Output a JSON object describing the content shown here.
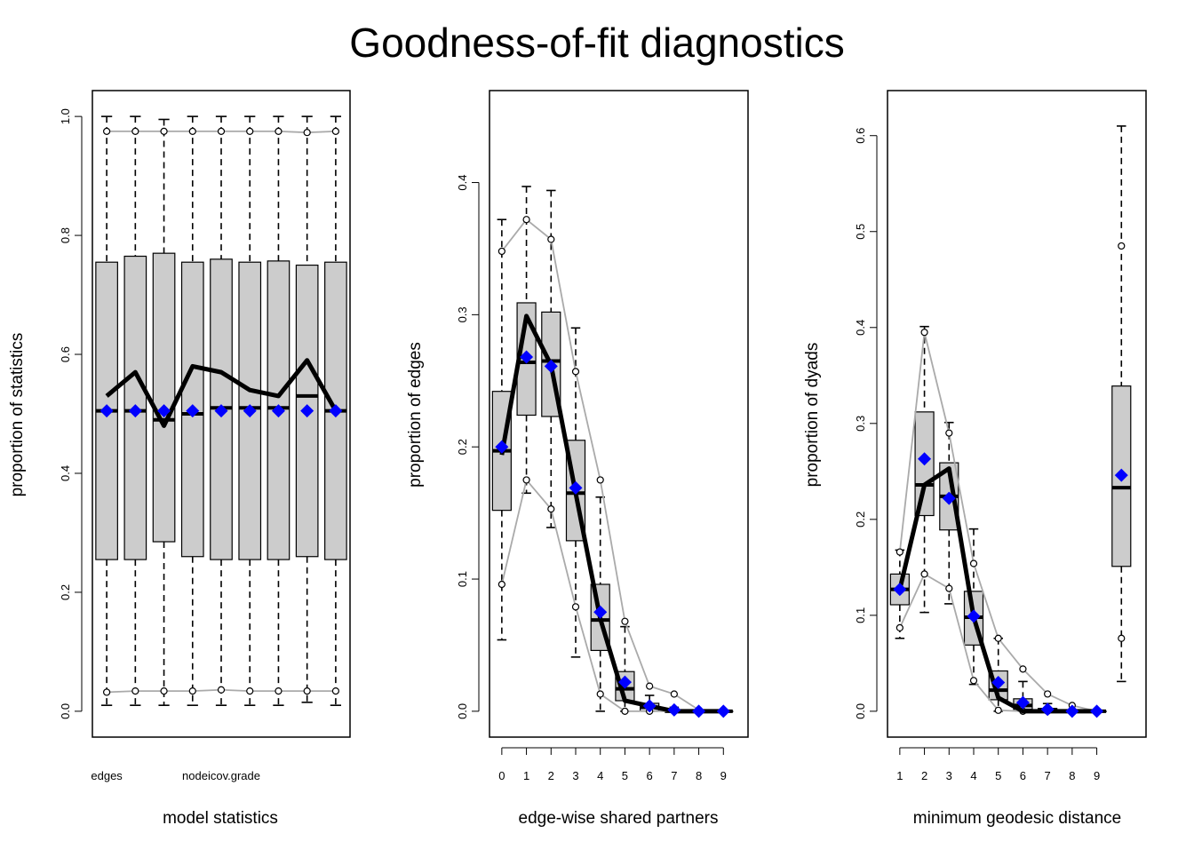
{
  "title": "Goodness-of-fit diagnostics",
  "colors": {
    "box_fill": "#cccccc",
    "observed": "#000000",
    "mean_marker": "#0000ff",
    "bounds": "#aaaaaa"
  },
  "chart_data": [
    {
      "type": "boxplot",
      "xlabel": "model statistics",
      "ylabel": "proportion of statistics",
      "ylim": [
        0.0,
        1.0
      ],
      "yticks": [
        "0.0",
        "0.2",
        "0.4",
        "0.6",
        "0.8",
        "1.0"
      ],
      "ytick_values": [
        0.0,
        0.2,
        0.4,
        0.6,
        0.8,
        1.0
      ],
      "x": [
        1,
        2,
        3,
        4,
        5,
        6,
        7,
        8,
        9
      ],
      "xticks": [
        {
          "x": 1,
          "label": "edges"
        },
        {
          "x": 5,
          "label": "nodeicov.grade"
        }
      ],
      "boxes": [
        {
          "min": 0.01,
          "q1": 0.255,
          "median": 0.505,
          "q3": 0.755,
          "max": 1.0
        },
        {
          "min": 0.01,
          "q1": 0.255,
          "median": 0.505,
          "q3": 0.765,
          "max": 1.0
        },
        {
          "min": 0.01,
          "q1": 0.285,
          "median": 0.49,
          "q3": 0.77,
          "max": 0.995
        },
        {
          "min": 0.01,
          "q1": 0.26,
          "median": 0.5,
          "q3": 0.755,
          "max": 1.0
        },
        {
          "min": 0.01,
          "q1": 0.255,
          "median": 0.51,
          "q3": 0.76,
          "max": 1.0
        },
        {
          "min": 0.01,
          "q1": 0.255,
          "median": 0.51,
          "q3": 0.755,
          "max": 1.0
        },
        {
          "min": 0.01,
          "q1": 0.255,
          "median": 0.51,
          "q3": 0.757,
          "max": 1.0
        },
        {
          "min": 0.015,
          "q1": 0.26,
          "median": 0.53,
          "q3": 0.75,
          "max": 1.0
        },
        {
          "min": 0.01,
          "q1": 0.255,
          "median": 0.505,
          "q3": 0.755,
          "max": 1.0
        }
      ],
      "observed": [
        0.53,
        0.57,
        0.48,
        0.58,
        0.57,
        0.54,
        0.53,
        0.59,
        0.505
      ],
      "simulated_mean": [
        0.505,
        0.505,
        0.505,
        0.505,
        0.505,
        0.505,
        0.505,
        0.505,
        0.505
      ],
      "lower_bound": [
        0.032,
        0.034,
        0.034,
        0.034,
        0.036,
        0.034,
        0.034,
        0.034,
        0.034
      ],
      "upper_bound": [
        0.975,
        0.975,
        0.975,
        0.975,
        0.975,
        0.975,
        0.975,
        0.973,
        0.975
      ]
    },
    {
      "type": "boxplot",
      "xlabel": "edge-wise shared partners",
      "ylabel": "proportion of edges",
      "ylim": [
        0.0,
        0.45
      ],
      "yticks": [
        "0.0",
        "0.1",
        "0.2",
        "0.3",
        "0.4"
      ],
      "ytick_values": [
        0.0,
        0.1,
        0.2,
        0.3,
        0.4
      ],
      "x": [
        0,
        1,
        2,
        3,
        4,
        5,
        6,
        7,
        8,
        9
      ],
      "xticks": [
        {
          "x": 0,
          "label": "0"
        },
        {
          "x": 1,
          "label": "1"
        },
        {
          "x": 2,
          "label": "2"
        },
        {
          "x": 3,
          "label": "3"
        },
        {
          "x": 4,
          "label": "4"
        },
        {
          "x": 5,
          "label": "5"
        },
        {
          "x": 6,
          "label": "6"
        },
        {
          "x": 7,
          "label": "7"
        },
        {
          "x": 8,
          "label": "8"
        },
        {
          "x": 9,
          "label": "9"
        }
      ],
      "boxes": [
        {
          "min": 0.054,
          "q1": 0.152,
          "median": 0.197,
          "q3": 0.242,
          "max": 0.372
        },
        {
          "min": 0.165,
          "q1": 0.224,
          "median": 0.264,
          "q3": 0.309,
          "max": 0.397
        },
        {
          "min": 0.139,
          "q1": 0.223,
          "median": 0.265,
          "q3": 0.302,
          "max": 0.394
        },
        {
          "min": 0.041,
          "q1": 0.129,
          "median": 0.165,
          "q3": 0.205,
          "max": 0.29
        },
        {
          "min": 0.0,
          "q1": 0.046,
          "median": 0.069,
          "q3": 0.096,
          "max": 0.162
        },
        {
          "min": 0.0,
          "q1": 0.008,
          "median": 0.017,
          "q3": 0.03,
          "max": 0.064
        },
        {
          "min": 0.0,
          "q1": 0.0,
          "median": 0.003,
          "q3": 0.006,
          "max": 0.012
        },
        {
          "min": 0.0,
          "q1": 0.0,
          "median": 0.0,
          "q3": 0.001,
          "max": 0.003
        },
        {
          "min": 0.0,
          "q1": 0.0,
          "median": 0.0,
          "q3": 0.0,
          "max": 0.001
        },
        {
          "min": 0.0,
          "q1": 0.0,
          "median": 0.0,
          "q3": 0.0,
          "max": 0.0
        }
      ],
      "observed": [
        0.194,
        0.299,
        0.262,
        0.165,
        0.07,
        0.008,
        0.004,
        0.0,
        0.0,
        0.0
      ],
      "simulated_mean": [
        0.2,
        0.268,
        0.261,
        0.169,
        0.075,
        0.022,
        0.004,
        0.001,
        0.0,
        0.0
      ],
      "lower_bound": [
        0.096,
        0.175,
        0.153,
        0.079,
        0.013,
        0.0,
        0.0,
        0.0,
        0.0,
        0.0
      ],
      "upper_bound": [
        0.348,
        0.372,
        0.357,
        0.257,
        0.175,
        0.068,
        0.019,
        0.013,
        0.001,
        0.0
      ]
    },
    {
      "type": "boxplot",
      "xlabel": "minimum geodesic distance",
      "ylabel": "proportion of dyads",
      "ylim": [
        0.0,
        0.62
      ],
      "yticks": [
        "0.0",
        "0.1",
        "0.2",
        "0.3",
        "0.4",
        "0.5",
        "0.6"
      ],
      "ytick_values": [
        0.0,
        0.1,
        0.2,
        0.3,
        0.4,
        0.5,
        0.6
      ],
      "x": [
        1,
        2,
        3,
        4,
        5,
        6,
        7,
        8,
        9,
        10
      ],
      "xticks": [
        {
          "x": 1,
          "label": "1"
        },
        {
          "x": 2,
          "label": "2"
        },
        {
          "x": 3,
          "label": "3"
        },
        {
          "x": 4,
          "label": "4"
        },
        {
          "x": 5,
          "label": "5"
        },
        {
          "x": 6,
          "label": "6"
        },
        {
          "x": 7,
          "label": "7"
        },
        {
          "x": 8,
          "label": "8"
        },
        {
          "x": 9,
          "label": "9"
        }
      ],
      "boxes": [
        {
          "min": 0.076,
          "q1": 0.111,
          "median": 0.127,
          "q3": 0.143,
          "max": 0.168
        },
        {
          "min": 0.103,
          "q1": 0.204,
          "median": 0.236,
          "q3": 0.312,
          "max": 0.401
        },
        {
          "min": 0.112,
          "q1": 0.189,
          "median": 0.224,
          "q3": 0.259,
          "max": 0.301
        },
        {
          "min": 0.028,
          "q1": 0.069,
          "median": 0.098,
          "q3": 0.125,
          "max": 0.19
        },
        {
          "min": 0.0,
          "q1": 0.012,
          "median": 0.022,
          "q3": 0.042,
          "max": 0.076
        },
        {
          "min": 0.0,
          "q1": 0.002,
          "median": 0.006,
          "q3": 0.013,
          "max": 0.031
        },
        {
          "min": 0.0,
          "q1": 0.0,
          "median": 0.001,
          "q3": 0.003,
          "max": 0.008
        },
        {
          "min": 0.0,
          "q1": 0.0,
          "median": 0.0,
          "q3": 0.0,
          "max": 0.001
        },
        {
          "min": 0.0,
          "q1": 0.0,
          "median": 0.0,
          "q3": 0.0,
          "max": 0.0
        },
        {
          "min": 0.031,
          "q1": 0.151,
          "median": 0.233,
          "q3": 0.339,
          "max": 0.61
        }
      ],
      "observed": [
        0.127,
        0.236,
        0.253,
        0.098,
        0.014,
        0.0,
        0.0,
        0.0,
        0.0,
        null
      ],
      "simulated_mean": [
        0.127,
        0.263,
        0.222,
        0.099,
        0.03,
        0.009,
        0.002,
        0.0,
        0.0,
        0.246
      ],
      "lower_bound": [
        0.087,
        0.143,
        0.128,
        0.032,
        0.001,
        0.0,
        0.0,
        0.0,
        0.0,
        0.076
      ],
      "upper_bound": [
        0.166,
        0.395,
        0.29,
        0.154,
        0.076,
        0.044,
        0.018,
        0.006,
        0.0,
        0.485
      ]
    }
  ]
}
